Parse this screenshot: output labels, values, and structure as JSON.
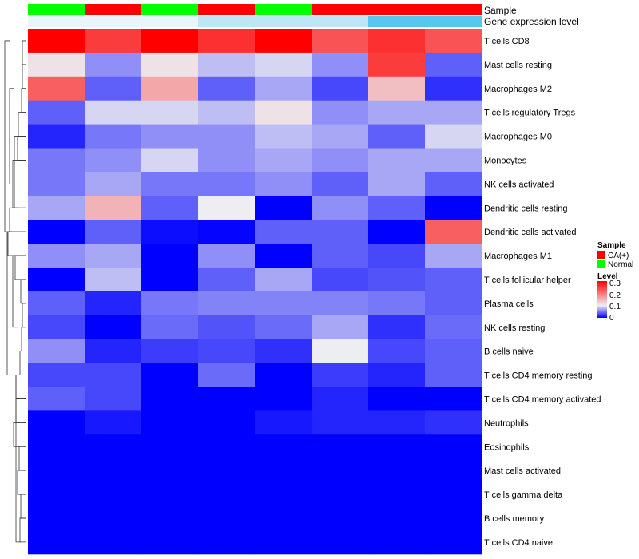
{
  "chart_data": {
    "type": "heatmap",
    "annotation_tracks": [
      {
        "name": "Sample",
        "values": [
          "Normal",
          "CA(+)",
          "Normal",
          "CA(+)",
          "Normal",
          "CA(+)",
          "CA(+)",
          "CA(+)"
        ]
      },
      {
        "name": "Gene expression level",
        "values": [
          "low",
          "low",
          "low",
          "mid",
          "mid",
          "mid",
          "high",
          "high"
        ]
      }
    ],
    "rows": [
      "T cells CD8",
      "Mast cells resting",
      "Macrophages M2",
      "T cells regulatory  Tregs",
      "Macrophages M0",
      "Monocytes",
      "NK cells activated",
      "Dendritic cells resting",
      "Dendritic cells activated",
      "Macrophages M1",
      "T cells follicular helper",
      "Plasma cells",
      "NK cells resting",
      "B cells naive",
      "T cells CD4 memory resting",
      "T cells CD4 memory activated",
      "Neutrophils",
      "Eosinophils",
      "Mast cells activated",
      "T cells gamma delta",
      "B cells memory",
      "T cells CD4 naive"
    ],
    "values": [
      [
        0.3,
        0.25,
        0.3,
        0.26,
        0.3,
        0.23,
        0.26,
        0.23
      ],
      [
        0.11,
        0.06,
        0.11,
        0.08,
        0.09,
        0.06,
        0.25,
        0.04
      ],
      [
        0.22,
        0.04,
        0.16,
        0.04,
        0.07,
        0.03,
        0.14,
        0.02
      ],
      [
        0.04,
        0.09,
        0.09,
        0.08,
        0.11,
        0.06,
        0.07,
        0.07
      ],
      [
        0.015,
        0.05,
        0.06,
        0.06,
        0.08,
        0.07,
        0.04,
        0.09
      ],
      [
        0.05,
        0.06,
        0.09,
        0.06,
        0.07,
        0.06,
        0.07,
        0.07
      ],
      [
        0.05,
        0.07,
        0.05,
        0.05,
        0.06,
        0.04,
        0.07,
        0.04
      ],
      [
        0.07,
        0.15,
        0.04,
        0.1,
        0.0,
        0.06,
        0.04,
        0.0
      ],
      [
        0.0,
        0.04,
        0.005,
        0.002,
        0.04,
        0.04,
        0.0,
        0.22
      ],
      [
        0.06,
        0.07,
        0.0,
        0.06,
        0.0,
        0.04,
        0.03,
        0.07
      ],
      [
        0.0,
        0.08,
        0.0,
        0.04,
        0.07,
        0.03,
        0.035,
        0.04
      ],
      [
        0.04,
        0.015,
        0.05,
        0.055,
        0.055,
        0.055,
        0.05,
        0.04
      ],
      [
        0.03,
        0.0,
        0.045,
        0.035,
        0.045,
        0.07,
        0.02,
        0.045
      ],
      [
        0.06,
        0.015,
        0.025,
        0.03,
        0.02,
        0.1,
        0.03,
        0.04
      ],
      [
        0.03,
        0.03,
        0.0,
        0.045,
        0.0,
        0.025,
        0.015,
        0.04
      ],
      [
        0.04,
        0.03,
        0.0,
        0.0,
        0.0,
        0.015,
        0.0,
        0.0
      ],
      [
        0.0,
        0.01,
        0.0,
        0.0,
        0.01,
        0.015,
        0.015,
        0.02
      ],
      [
        0.0,
        0.0,
        0.0,
        0.0,
        0.0,
        0.0,
        0.0,
        0.0
      ],
      [
        0.0,
        0.0,
        0.0,
        0.0,
        0.0,
        0.0,
        0.0,
        0.0
      ],
      [
        0.0,
        0.0,
        0.0,
        0.0,
        0.0,
        0.0,
        0.0,
        0.0
      ],
      [
        0.0,
        0.0,
        0.0,
        0.0,
        0.0,
        0.0,
        0.0,
        0.0
      ],
      [
        0.0,
        0.0,
        0.0,
        0.0,
        0.0,
        0.0,
        0.0,
        0.0
      ]
    ],
    "color_scale": {
      "min": 0,
      "mid": 0.1,
      "max": 0.3,
      "low_color": "#0000ff",
      "mid_color": "#eeeef2",
      "high_color": "#ff0000"
    },
    "legend_sample": {
      "title": "Sample",
      "entries": [
        {
          "label": "CA(+)",
          "color": "#ff0000"
        },
        {
          "label": "Normal",
          "color": "#00ff00"
        }
      ]
    },
    "legend_level": {
      "title": "Level",
      "ticks": [
        "0.3",
        "0.2",
        "0.1",
        "0"
      ]
    },
    "gene_expression_colors": {
      "low": "#e8f6fb",
      "mid": "#bfe6f4",
      "high": "#56c8f0"
    },
    "row_dendrogram": true,
    "legend_placement": "right"
  }
}
